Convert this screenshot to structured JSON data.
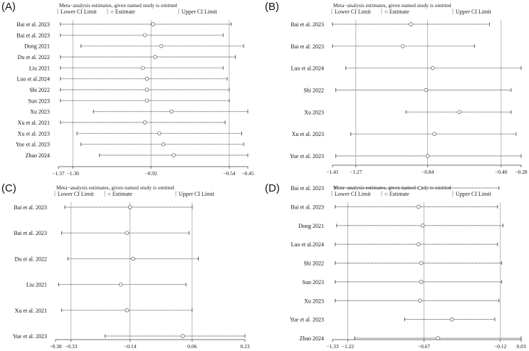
{
  "figure": {
    "panel_labels": [
      "(A)",
      "(B)",
      "(C)",
      "(D)"
    ]
  },
  "chart_data": [
    {
      "type": "forest",
      "title": "Meta−analysis estimates, given named study is omitted",
      "legend": [
        "Lower CI Limit",
        "Estimate",
        "Upper CI Limit"
      ],
      "legend_position": "top-left",
      "x_ticks": [
        "−1.37",
        "−1.30",
        "−0.92",
        "−0.54",
        "−0.45"
      ],
      "x_tick_values": [
        -1.37,
        -1.3,
        -0.92,
        -0.54,
        -0.45
      ],
      "xlim": [
        -1.37,
        -0.45
      ],
      "reference_lines": [
        -1.3,
        -0.92,
        -0.54
      ],
      "studies": [
        {
          "label": "Bai et al. 2023",
          "lower": -1.36,
          "estimate": -0.91,
          "upper": -0.53
        },
        {
          "label": "Bai et al. 2023",
          "lower": -1.36,
          "estimate": -0.95,
          "upper": -0.57
        },
        {
          "label": "Dong 2021",
          "lower": -1.26,
          "estimate": -0.87,
          "upper": -0.47
        },
        {
          "label": "Du et al. 2022",
          "lower": -1.36,
          "estimate": -0.9,
          "upper": -0.51
        },
        {
          "label": "Liu 2021",
          "lower": -1.36,
          "estimate": -0.96,
          "upper": -0.57
        },
        {
          "label": "Luo et al.2024",
          "lower": -1.36,
          "estimate": -0.94,
          "upper": -0.55
        },
        {
          "label": "Shi 2022",
          "lower": -1.36,
          "estimate": -0.94,
          "upper": -0.54
        },
        {
          "label": "Sun 2023",
          "lower": -1.36,
          "estimate": -0.94,
          "upper": -0.54
        },
        {
          "label": "Xu 2023",
          "lower": -1.2,
          "estimate": -0.82,
          "upper": -0.45
        },
        {
          "label": "Xu et al. 2021",
          "lower": -1.36,
          "estimate": -0.95,
          "upper": -0.56
        },
        {
          "label": "Xu et al. 2023",
          "lower": -1.28,
          "estimate": -0.88,
          "upper": -0.48
        },
        {
          "label": "Yue et al. 2023",
          "lower": -1.26,
          "estimate": -0.86,
          "upper": -0.47
        },
        {
          "label": "Zhao 2024",
          "lower": -1.17,
          "estimate": -0.81,
          "upper": -0.45
        }
      ]
    },
    {
      "type": "forest",
      "title": "Meta−analysis estimates, given named study is omitted",
      "legend": [
        "Lower CI Limit",
        "Estimate",
        "Upper CI Limit"
      ],
      "legend_position": "top-left",
      "x_ticks": [
        "−1.41",
        "−1.27",
        "−0.84",
        "−0.40",
        "−0.28"
      ],
      "x_tick_values": [
        -1.41,
        -1.27,
        -0.84,
        -0.4,
        -0.28
      ],
      "xlim": [
        -1.41,
        -0.28
      ],
      "reference_lines": [
        -1.27,
        -0.84,
        -0.4
      ],
      "studies": [
        {
          "label": "Bai et al. 2023",
          "lower": -1.41,
          "estimate": -0.94,
          "upper": -0.47
        },
        {
          "label": "Bai et al. 2023",
          "lower": -1.41,
          "estimate": -0.99,
          "upper": -0.56
        },
        {
          "label": "Luo et al.2024",
          "lower": -1.33,
          "estimate": -0.81,
          "upper": -0.28
        },
        {
          "label": "Shi 2022",
          "lower": -1.39,
          "estimate": -0.85,
          "upper": -0.34
        },
        {
          "label": "Xu 2023",
          "lower": -0.97,
          "estimate": -0.65,
          "upper": -0.34
        },
        {
          "label": "Xu et al. 2023",
          "lower": -1.3,
          "estimate": -0.8,
          "upper": -0.31
        },
        {
          "label": "Yue et al. 2023",
          "lower": -1.39,
          "estimate": -0.84,
          "upper": -0.28
        }
      ]
    },
    {
      "type": "forest",
      "title": "Meta−analysis estimates, given named study is omitted",
      "legend": [
        "Lower CI Limit",
        "Estimate",
        "Upper CI Limit"
      ],
      "legend_position": "top-left",
      "x_ticks": [
        "−0.38",
        "−0.33",
        "−0.14",
        "0.06",
        "0.23"
      ],
      "x_tick_values": [
        -0.38,
        -0.33,
        -0.14,
        0.06,
        0.23
      ],
      "xlim": [
        -0.38,
        0.23
      ],
      "reference_lines": [
        -0.33,
        -0.14,
        0.06
      ],
      "studies": [
        {
          "label": "Bai et al. 2023",
          "lower": -0.35,
          "estimate": -0.14,
          "upper": 0.06
        },
        {
          "label": "Bai et al. 2023",
          "lower": -0.36,
          "estimate": -0.15,
          "upper": 0.05
        },
        {
          "label": "Du et al. 2022",
          "lower": -0.34,
          "estimate": -0.13,
          "upper": 0.08
        },
        {
          "label": "Liu 2021",
          "lower": -0.37,
          "estimate": -0.17,
          "upper": 0.04
        },
        {
          "label": "Xu et al. 2021",
          "lower": -0.36,
          "estimate": -0.15,
          "upper": 0.06
        },
        {
          "label": "Yue et al. 2023",
          "lower": -0.22,
          "estimate": 0.03,
          "upper": 0.23
        }
      ]
    },
    {
      "type": "forest",
      "title": "Meta−analysis estimates, given named study is omitted",
      "legend": [
        "Lower CI Limit",
        "Estimate",
        "Upper CI Limit"
      ],
      "legend_position": "top-left",
      "x_ticks": [
        "−1.33",
        "−1.22",
        "−0.67",
        "−0.12",
        "0.03"
      ],
      "x_tick_values": [
        -1.33,
        -1.22,
        -0.67,
        -0.12,
        0.03
      ],
      "xlim": [
        -1.33,
        0.03
      ],
      "reference_lines": [
        -1.22,
        -0.67,
        -0.12
      ],
      "studies": [
        {
          "label": "Bai et al. 2023",
          "lower": -1.31,
          "estimate": -0.7,
          "upper": -0.13
        },
        {
          "label": "Bai et al. 2023",
          "lower": -1.31,
          "estimate": -0.71,
          "upper": -0.14
        },
        {
          "label": "Dong 2021",
          "lower": -1.3,
          "estimate": -0.68,
          "upper": -0.1
        },
        {
          "label": "Luo et al.2024",
          "lower": -1.31,
          "estimate": -0.71,
          "upper": -0.14
        },
        {
          "label": "Shi 2022",
          "lower": -1.31,
          "estimate": -0.69,
          "upper": -0.11
        },
        {
          "label": "Sun 2023",
          "lower": -1.31,
          "estimate": -0.69,
          "upper": -0.11
        },
        {
          "label": "Xu 2023",
          "lower": -1.31,
          "estimate": -0.7,
          "upper": -0.13
        },
        {
          "label": "Yue et al. 2023",
          "lower": -0.81,
          "estimate": -0.47,
          "upper": -0.16
        },
        {
          "label": "Zhao 2024",
          "lower": -1.17,
          "estimate": -0.57,
          "upper": 0.03
        }
      ]
    }
  ]
}
